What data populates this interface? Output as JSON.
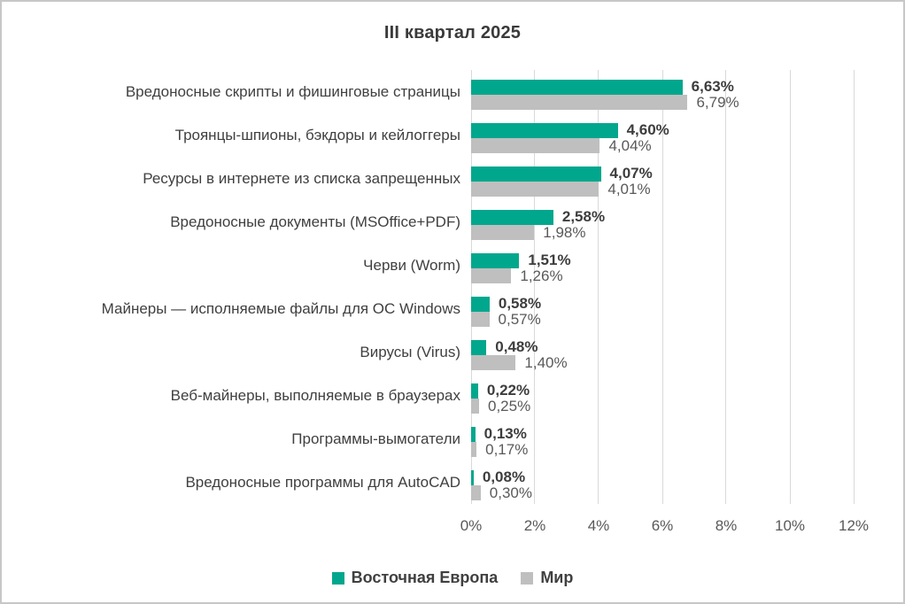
{
  "title": "III квартал 2025",
  "colors": {
    "eastern_europe": "#00a78d",
    "world": "#bfbfbf",
    "gridline": "#d9d9d9",
    "value_label_bold": "#3d3d3d",
    "value_label_regular": "#595959",
    "category_text": "#404040",
    "background": "#ffffff",
    "border": "#c7c7c7"
  },
  "chart_data": {
    "type": "bar",
    "orientation": "horizontal",
    "title": "III квартал 2025",
    "categories": [
      "Вредоносные скрипты и фишинговые страницы",
      "Троянцы-шпионы, бэкдоры и кейлоггеры",
      "Ресурсы в интернете из списка запрещенных",
      "Вредоносные документы (MSOffice+PDF)",
      "Черви (Worm)",
      "Майнеры — исполняемые файлы для ОС Windows",
      "Вирусы (Virus)",
      "Веб-майнеры, выполняемые в браузерах",
      "Программы-вымогатели",
      "Вредоносные программы для AutoCAD"
    ],
    "series": [
      {
        "name": "Восточная Европа",
        "color": "#00a78d",
        "values": [
          6.63,
          4.6,
          4.07,
          2.58,
          1.51,
          0.58,
          0.48,
          0.22,
          0.13,
          0.08
        ],
        "labels": [
          "6,63%",
          "4,60%",
          "4,07%",
          "2,58%",
          "1,51%",
          "0,58%",
          "0,48%",
          "0,22%",
          "0,13%",
          "0,08%"
        ]
      },
      {
        "name": "Мир",
        "color": "#bfbfbf",
        "values": [
          6.79,
          4.04,
          4.01,
          1.98,
          1.26,
          0.57,
          1.4,
          0.25,
          0.17,
          0.3
        ],
        "labels": [
          "6,79%",
          "4,04%",
          "4,01%",
          "1,98%",
          "1,26%",
          "0,57%",
          "1,40%",
          "0,25%",
          "0,17%",
          "0,30%"
        ]
      }
    ],
    "xlabel": "",
    "ylabel": "",
    "xlim": [
      0,
      12
    ],
    "x_ticks": [
      "0%",
      "2%",
      "4%",
      "6%",
      "8%",
      "10%",
      "12%"
    ],
    "grid": true,
    "legend_position": "bottom"
  }
}
